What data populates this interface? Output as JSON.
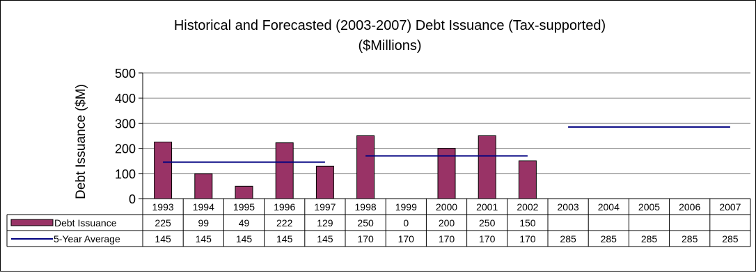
{
  "chart_data": {
    "type": "bar",
    "title": "Historical and Forecasted (2003-2007) Debt Issuance (Tax-supported)",
    "subtitle": "($Millions)",
    "ylabel": "Debt Issuance ($M)",
    "ylim": [
      0,
      500
    ],
    "yticks": [
      0,
      100,
      200,
      300,
      400,
      500
    ],
    "grid": true,
    "categories": [
      "1993",
      "1994",
      "1995",
      "1996",
      "1997",
      "1998",
      "1999",
      "2000",
      "2001",
      "2002",
      "2003",
      "2004",
      "2005",
      "2006",
      "2007"
    ],
    "series": [
      {
        "name": "Debt Issuance",
        "type": "bar",
        "color": "#993366",
        "values": [
          225,
          99,
          49,
          222,
          129,
          250,
          0,
          200,
          250,
          150,
          null,
          null,
          null,
          null,
          null
        ],
        "labels": [
          "225",
          "99",
          "49",
          "222",
          "129",
          "250",
          "0",
          "200",
          "250",
          "150",
          "",
          "",
          "",
          "",
          ""
        ]
      },
      {
        "name": "5-Year Average",
        "type": "line",
        "color": "#000080",
        "values": [
          145,
          145,
          145,
          145,
          145,
          170,
          170,
          170,
          170,
          170,
          285,
          285,
          285,
          285,
          285
        ],
        "labels": [
          "145",
          "145",
          "145",
          "145",
          "145",
          "170",
          "170",
          "170",
          "170",
          "170",
          "285",
          "285",
          "285",
          "285",
          "285"
        ]
      }
    ]
  }
}
